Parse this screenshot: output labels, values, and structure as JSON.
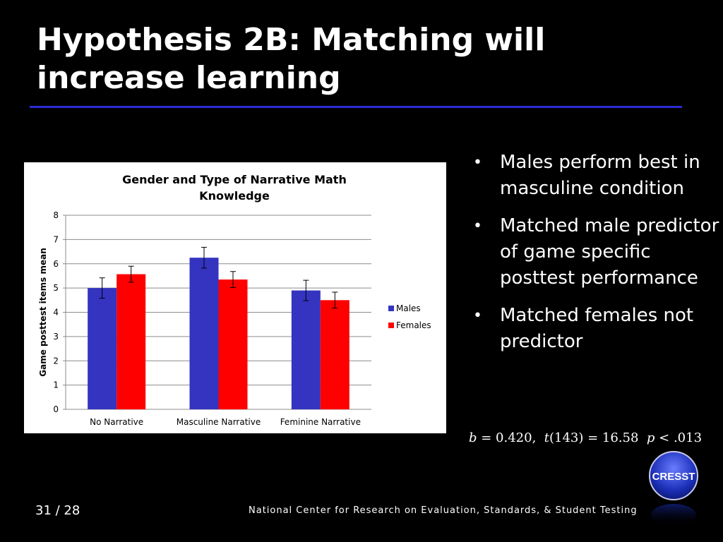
{
  "slide": {
    "title": "Hypothesis 2B: Matching will increase learning",
    "bullets": [
      "Males perform best in masculine condition",
      "Matched male predictor of game specific posttest performance",
      "Matched females not predictor"
    ],
    "stats": {
      "b_label": "b",
      "b_value": " = 0.420,  ",
      "t_label": "t",
      "t_value": "(143) = 16.58  ",
      "p_label": "p",
      "p_value": " < .013"
    },
    "page_number": "31 / 28",
    "footer": "National Center for Research on Evaluation, Standards, & Student Testing",
    "logo_text": "CRESST"
  },
  "colors": {
    "background": "#000000",
    "title_rule": "#2b2bd6",
    "males": "#3434c0",
    "females": "#ff0000"
  },
  "chart_data": {
    "type": "bar",
    "title": "Gender and Type of Narrative Math Knowledge",
    "xlabel": "",
    "ylabel": "Game posttest items mean",
    "categories": [
      "No Narrative",
      "Masculine Narrative",
      "Feminine Narrative"
    ],
    "series": [
      {
        "name": "Males",
        "color": "#3434c0",
        "values": [
          5.0,
          6.25,
          4.9
        ],
        "error": [
          0.42,
          0.43,
          0.42
        ]
      },
      {
        "name": "Females",
        "color": "#ff0000",
        "values": [
          5.57,
          5.35,
          4.5
        ],
        "error": [
          0.33,
          0.33,
          0.33
        ]
      }
    ],
    "ylim": [
      0,
      8
    ],
    "yticks": [
      0,
      1,
      2,
      3,
      4,
      5,
      6,
      7,
      8
    ],
    "grid": true,
    "legend": "right"
  }
}
